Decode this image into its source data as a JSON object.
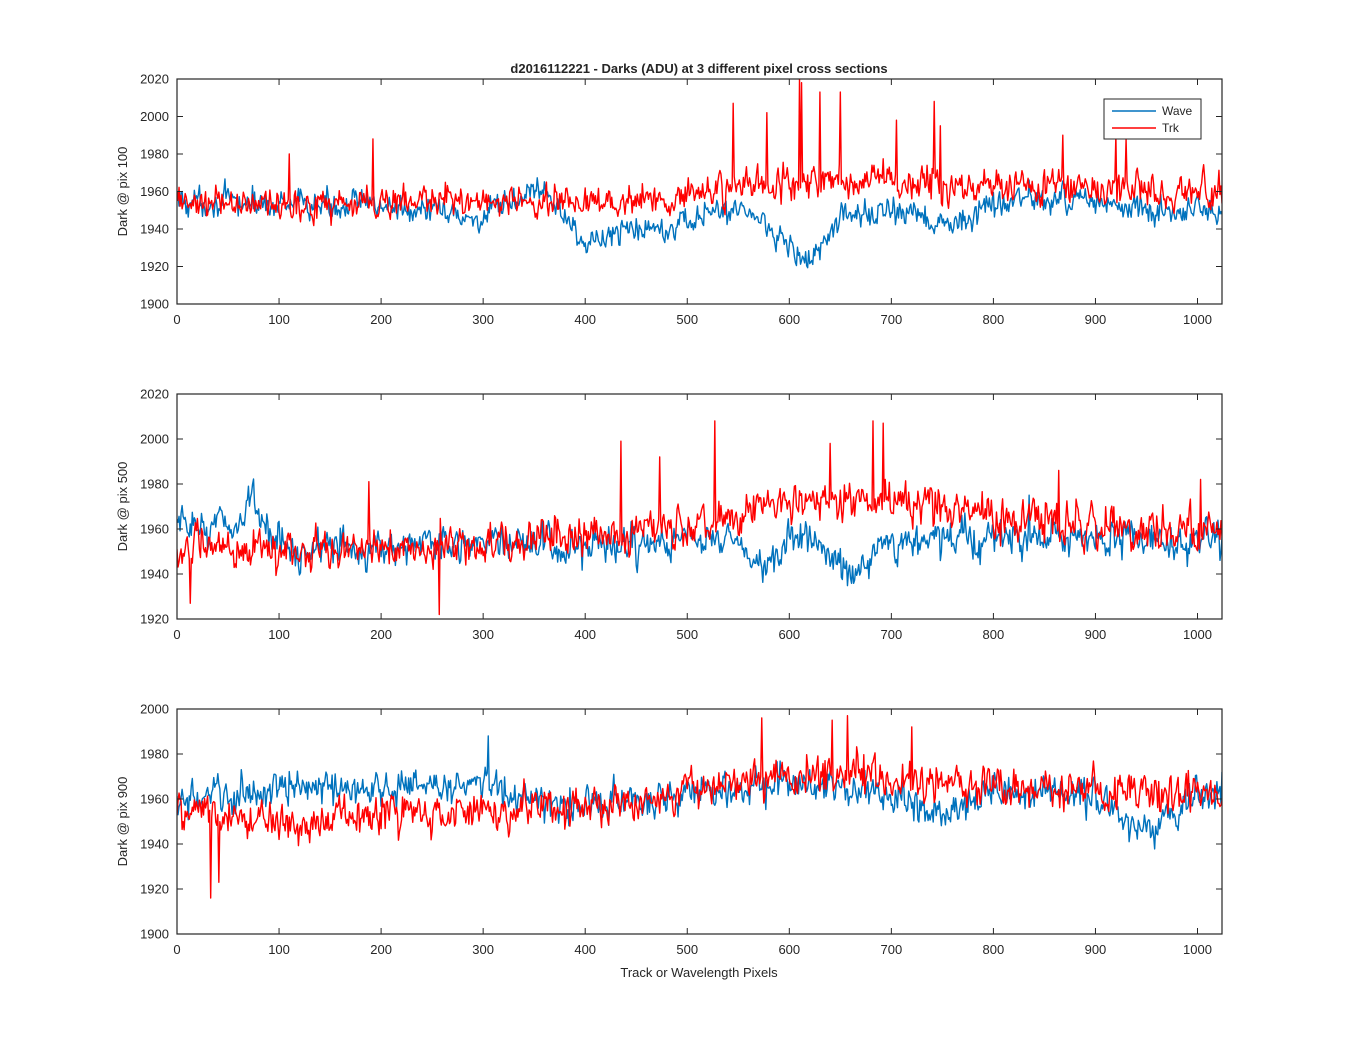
{
  "chart_data": {
    "type": "line",
    "title": "d2016112221 - Darks (ADU) at 3 different pixel cross sections",
    "xlabel": "Track or Wavelength Pixels",
    "xlim": [
      0,
      1024
    ],
    "xticks": [
      0,
      100,
      200,
      300,
      400,
      500,
      600,
      700,
      800,
      900,
      1000
    ],
    "grid": false,
    "legend": {
      "placement": "top-right",
      "entries": [
        "Wave",
        "Trk"
      ]
    },
    "series_colors": {
      "Wave": "#0072bd",
      "Trk": "#ff0000"
    },
    "panels": [
      {
        "ylabel": "Dark @ pix 100",
        "ylim": [
          1900,
          2020
        ],
        "yticks": [
          1900,
          1920,
          1940,
          1960,
          1980,
          2000,
          2020
        ],
        "series": [
          {
            "name": "Wave",
            "noise": 5.5,
            "trend": [
              [
                0,
                1955
              ],
              [
                100,
                1953
              ],
              [
                200,
                1953
              ],
              [
                250,
                1949
              ],
              [
                300,
                1945
              ],
              [
                355,
                1963
              ],
              [
                400,
                1933
              ],
              [
                420,
                1935
              ],
              [
                450,
                1941
              ],
              [
                500,
                1944
              ],
              [
                530,
                1949
              ],
              [
                550,
                1952
              ],
              [
                580,
                1942
              ],
              [
                620,
                1921
              ],
              [
                650,
                1946
              ],
              [
                700,
                1950
              ],
              [
                730,
                1945
              ],
              [
                760,
                1940
              ],
              [
                780,
                1948
              ],
              [
                800,
                1955
              ],
              [
                900,
                1956
              ],
              [
                950,
                1948
              ],
              [
                1000,
                1950
              ],
              [
                1024,
                1945
              ]
            ],
            "spikes": []
          },
          {
            "name": "Trk",
            "noise": 6.5,
            "trend": [
              [
                0,
                1953
              ],
              [
                100,
                1953
              ],
              [
                300,
                1955
              ],
              [
                400,
                1955
              ],
              [
                500,
                1958
              ],
              [
                550,
                1962
              ],
              [
                600,
                1965
              ],
              [
                650,
                1966
              ],
              [
                700,
                1966
              ],
              [
                800,
                1963
              ],
              [
                900,
                1962
              ],
              [
                1024,
                1960
              ]
            ],
            "spikes": [
              [
                110,
                1980
              ],
              [
                192,
                1988
              ],
              [
                545,
                2007
              ],
              [
                578,
                2002
              ],
              [
                610,
                2020
              ],
              [
                612,
                2018
              ],
              [
                630,
                2013
              ],
              [
                650,
                2013
              ],
              [
                705,
                1998
              ],
              [
                742,
                2008
              ],
              [
                748,
                1995
              ],
              [
                868,
                1990
              ],
              [
                920,
                1990
              ],
              [
                930,
                1988
              ]
            ]
          }
        ]
      },
      {
        "ylabel": "Dark @ pix 500",
        "ylim": [
          1920,
          2020
        ],
        "yticks": [
          1920,
          1940,
          1960,
          1980,
          2000,
          2020
        ],
        "series": [
          {
            "name": "Wave",
            "noise": 6,
            "trend": [
              [
                0,
                1960
              ],
              [
                60,
                1963
              ],
              [
                75,
                1972
              ],
              [
                100,
                1952
              ],
              [
                200,
                1952
              ],
              [
                300,
                1955
              ],
              [
                400,
                1950
              ],
              [
                500,
                1955
              ],
              [
                540,
                1955
              ],
              [
                580,
                1941
              ],
              [
                600,
                1955
              ],
              [
                620,
                1958
              ],
              [
                660,
                1940
              ],
              [
                700,
                1955
              ],
              [
                800,
                1956
              ],
              [
                900,
                1955
              ],
              [
                1024,
                1955
              ]
            ],
            "spikes": [
              [
                70,
                1979
              ],
              [
                835,
                1975
              ]
            ]
          },
          {
            "name": "Trk",
            "noise": 6.5,
            "trend": [
              [
                0,
                1952
              ],
              [
                100,
                1950
              ],
              [
                300,
                1953
              ],
              [
                400,
                1958
              ],
              [
                500,
                1962
              ],
              [
                550,
                1966
              ],
              [
                600,
                1970
              ],
              [
                650,
                1972
              ],
              [
                700,
                1972
              ],
              [
                800,
                1965
              ],
              [
                900,
                1962
              ],
              [
                1024,
                1958
              ]
            ],
            "spikes": [
              [
                13,
                1927
              ],
              [
                188,
                1981
              ],
              [
                257,
                1922
              ],
              [
                435,
                1999
              ],
              [
                473,
                1992
              ],
              [
                527,
                2008
              ],
              [
                640,
                1998
              ],
              [
                682,
                2008
              ],
              [
                692,
                2007
              ],
              [
                864,
                1986
              ],
              [
                1003,
                1982
              ]
            ]
          }
        ]
      },
      {
        "ylabel": "Dark @ pix 900",
        "ylim": [
          1900,
          2000
        ],
        "yticks": [
          1900,
          1920,
          1940,
          1960,
          1980,
          2000
        ],
        "series": [
          {
            "name": "Wave",
            "noise": 6,
            "trend": [
              [
                0,
                1958
              ],
              [
                100,
                1965
              ],
              [
                200,
                1965
              ],
              [
                300,
                1967
              ],
              [
                350,
                1958
              ],
              [
                400,
                1958
              ],
              [
                500,
                1962
              ],
              [
                600,
                1967
              ],
              [
                700,
                1962
              ],
              [
                750,
                1952
              ],
              [
                800,
                1963
              ],
              [
                900,
                1962
              ],
              [
                950,
                1945
              ],
              [
                1000,
                1960
              ],
              [
                1024,
                1965
              ]
            ],
            "spikes": [
              [
                305,
                1988
              ]
            ]
          },
          {
            "name": "Trk",
            "noise": 6.5,
            "trend": [
              [
                0,
                1955
              ],
              [
                100,
                1950
              ],
              [
                200,
                1953
              ],
              [
                300,
                1953
              ],
              [
                400,
                1958
              ],
              [
                500,
                1962
              ],
              [
                600,
                1970
              ],
              [
                650,
                1972
              ],
              [
                700,
                1970
              ],
              [
                800,
                1966
              ],
              [
                900,
                1963
              ],
              [
                1024,
                1962
              ]
            ],
            "spikes": [
              [
                33,
                1916
              ],
              [
                41,
                1923
              ],
              [
                573,
                1996
              ],
              [
                642,
                1995
              ],
              [
                657,
                1997
              ],
              [
                720,
                1992
              ]
            ]
          }
        ]
      }
    ]
  }
}
